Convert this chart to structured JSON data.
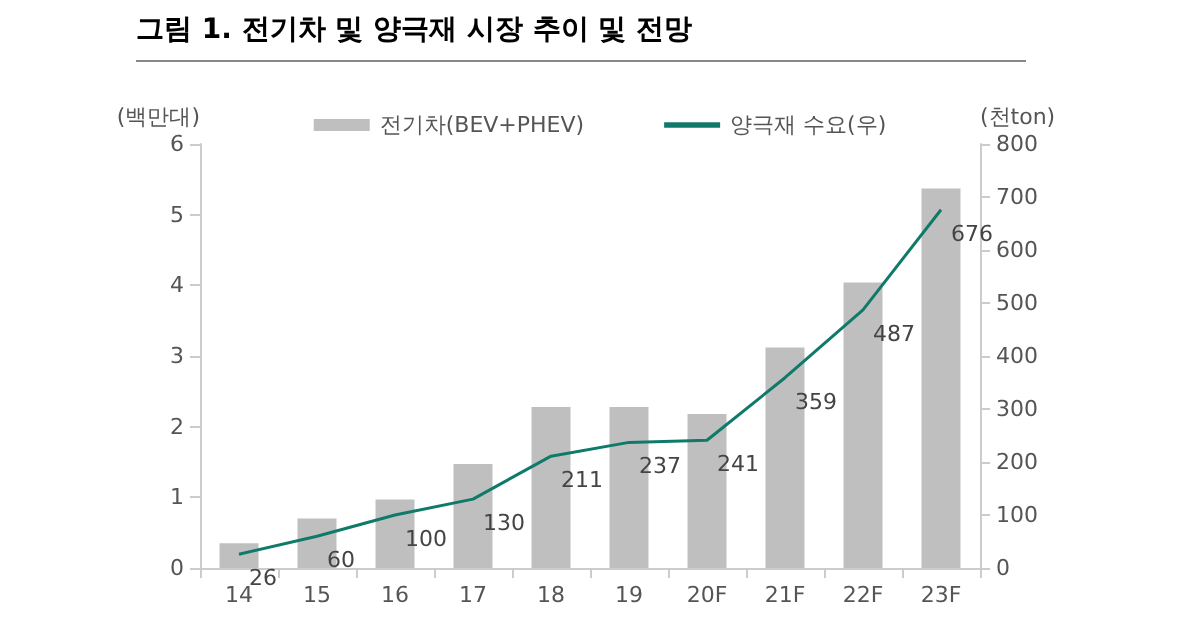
{
  "chart_data": {
    "type": "bar",
    "title": "그림 1. 전기차 및 양극재 시장 추이 및 전망",
    "ylabel": "(백만대)",
    "y2label": "(천ton)",
    "categories": [
      "14",
      "15",
      "16",
      "17",
      "18",
      "19",
      "20F",
      "21F",
      "22F",
      "23F"
    ],
    "series": [
      {
        "name": "전기차(BEV+PHEV)",
        "color": "#bfbfbf",
        "values": [
          0.35,
          0.7,
          0.97,
          1.47,
          2.28,
          2.28,
          2.18,
          3.12,
          4.04,
          5.37
        ]
      },
      {
        "name": "양극재 수요(우)",
        "type": "line",
        "axis": "y2",
        "color": "#0f7a6a",
        "values": [
          26,
          60,
          100,
          130,
          211,
          237,
          241,
          359,
          487,
          676
        ],
        "value_labels": [
          "26",
          "60",
          "100",
          "130",
          "211",
          "237",
          "241",
          "359",
          "487",
          "676"
        ]
      }
    ],
    "ylim": [
      0,
      6
    ],
    "yticks": [
      0,
      1,
      2,
      3,
      4,
      5,
      6
    ],
    "y2lim": [
      0,
      800
    ],
    "y2ticks": [
      0,
      100,
      200,
      300,
      400,
      500,
      600,
      700,
      800
    ],
    "legend": "top",
    "grid": false,
    "marker": "none"
  }
}
